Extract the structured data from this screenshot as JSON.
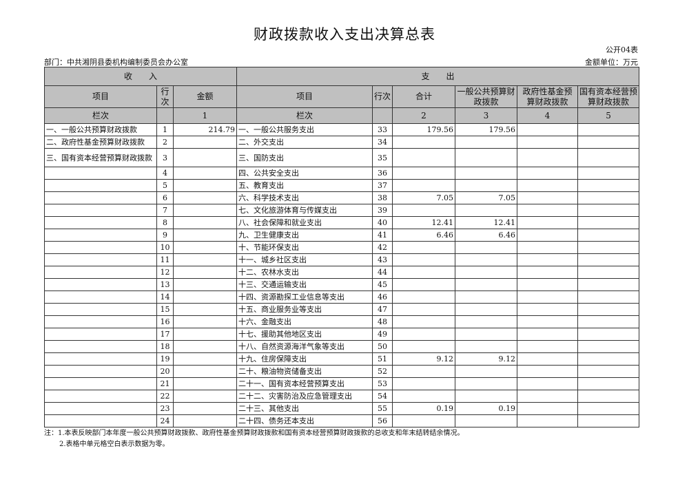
{
  "title": "财政拨款收入支出决算总表",
  "form_no": "公开04表",
  "department": "部门：中共湘阴县委机构编制委员会办公室",
  "unit": "金额单位：万元",
  "header": {
    "income": "收　　入",
    "expense": "支　　出",
    "income_item": "项目",
    "income_row": "行次",
    "income_amount": "金额",
    "expense_item": "项目",
    "expense_row": "行次",
    "total": "合计",
    "general": "一般公共预算财政拨款",
    "fund": "政府性基金预算财政拨款",
    "state_capital": "国有资本经营预算财政拨款",
    "col_label_left": "栏次",
    "col_label_right": "栏次",
    "col1": "1",
    "col2": "2",
    "col3": "3",
    "col4": "4",
    "col5": "5"
  },
  "rows": [
    {
      "in_item": "一、一般公共预算财政拨款",
      "in_no": "1",
      "in_amt": "214.79",
      "ex_item": "一、一般公共服务支出",
      "ex_no": "33",
      "total": "179.56",
      "general": "179.56",
      "fund": "",
      "sc": ""
    },
    {
      "in_item": "二、政府性基金预算财政拨款",
      "in_no": "2",
      "in_amt": "",
      "ex_item": "二、外交支出",
      "ex_no": "34",
      "total": "",
      "general": "",
      "fund": "",
      "sc": ""
    },
    {
      "in_item": "三、国有资本经营预算财政拨款",
      "in_no": "3",
      "in_amt": "",
      "ex_item": "三、国防支出",
      "ex_no": "35",
      "total": "",
      "general": "",
      "fund": "",
      "sc": ""
    },
    {
      "in_item": "",
      "in_no": "4",
      "in_amt": "",
      "ex_item": "四、公共安全支出",
      "ex_no": "36",
      "total": "",
      "general": "",
      "fund": "",
      "sc": ""
    },
    {
      "in_item": "",
      "in_no": "5",
      "in_amt": "",
      "ex_item": "五、教育支出",
      "ex_no": "37",
      "total": "",
      "general": "",
      "fund": "",
      "sc": ""
    },
    {
      "in_item": "",
      "in_no": "6",
      "in_amt": "",
      "ex_item": "六、科学技术支出",
      "ex_no": "38",
      "total": "7.05",
      "general": "7.05",
      "fund": "",
      "sc": ""
    },
    {
      "in_item": "",
      "in_no": "7",
      "in_amt": "",
      "ex_item": "七、文化旅游体育与传媒支出",
      "ex_no": "39",
      "total": "",
      "general": "",
      "fund": "",
      "sc": ""
    },
    {
      "in_item": "",
      "in_no": "8",
      "in_amt": "",
      "ex_item": "八、社会保障和就业支出",
      "ex_no": "40",
      "total": "12.41",
      "general": "12.41",
      "fund": "",
      "sc": ""
    },
    {
      "in_item": "",
      "in_no": "9",
      "in_amt": "",
      "ex_item": "九、卫生健康支出",
      "ex_no": "41",
      "total": "6.46",
      "general": "6.46",
      "fund": "",
      "sc": ""
    },
    {
      "in_item": "",
      "in_no": "10",
      "in_amt": "",
      "ex_item": "十、节能环保支出",
      "ex_no": "42",
      "total": "",
      "general": "",
      "fund": "",
      "sc": ""
    },
    {
      "in_item": "",
      "in_no": "11",
      "in_amt": "",
      "ex_item": "十一、城乡社区支出",
      "ex_no": "43",
      "total": "",
      "general": "",
      "fund": "",
      "sc": ""
    },
    {
      "in_item": "",
      "in_no": "12",
      "in_amt": "",
      "ex_item": "十二、农林水支出",
      "ex_no": "44",
      "total": "",
      "general": "",
      "fund": "",
      "sc": ""
    },
    {
      "in_item": "",
      "in_no": "13",
      "in_amt": "",
      "ex_item": "十三、交通运输支出",
      "ex_no": "45",
      "total": "",
      "general": "",
      "fund": "",
      "sc": ""
    },
    {
      "in_item": "",
      "in_no": "14",
      "in_amt": "",
      "ex_item": "十四、资源勘探工业信息等支出",
      "ex_no": "46",
      "total": "",
      "general": "",
      "fund": "",
      "sc": ""
    },
    {
      "in_item": "",
      "in_no": "15",
      "in_amt": "",
      "ex_item": "十五、商业服务业等支出",
      "ex_no": "47",
      "total": "",
      "general": "",
      "fund": "",
      "sc": ""
    },
    {
      "in_item": "",
      "in_no": "16",
      "in_amt": "",
      "ex_item": "十六、金融支出",
      "ex_no": "48",
      "total": "",
      "general": "",
      "fund": "",
      "sc": ""
    },
    {
      "in_item": "",
      "in_no": "17",
      "in_amt": "",
      "ex_item": "十七、援助其他地区支出",
      "ex_no": "49",
      "total": "",
      "general": "",
      "fund": "",
      "sc": ""
    },
    {
      "in_item": "",
      "in_no": "18",
      "in_amt": "",
      "ex_item": "十八、自然资源海洋气象等支出",
      "ex_no": "50",
      "total": "",
      "general": "",
      "fund": "",
      "sc": ""
    },
    {
      "in_item": "",
      "in_no": "19",
      "in_amt": "",
      "ex_item": "十九、住房保障支出",
      "ex_no": "51",
      "total": "9.12",
      "general": "9.12",
      "fund": "",
      "sc": ""
    },
    {
      "in_item": "",
      "in_no": "20",
      "in_amt": "",
      "ex_item": "二十、粮油物资储备支出",
      "ex_no": "52",
      "total": "",
      "general": "",
      "fund": "",
      "sc": ""
    },
    {
      "in_item": "",
      "in_no": "21",
      "in_amt": "",
      "ex_item": "二十一、国有资本经营预算支出",
      "ex_no": "53",
      "total": "",
      "general": "",
      "fund": "",
      "sc": ""
    },
    {
      "in_item": "",
      "in_no": "22",
      "in_amt": "",
      "ex_item": "二十二、灾害防治及应急管理支出",
      "ex_no": "54",
      "total": "",
      "general": "",
      "fund": "",
      "sc": ""
    },
    {
      "in_item": "",
      "in_no": "23",
      "in_amt": "",
      "ex_item": "二十三、其他支出",
      "ex_no": "55",
      "total": "0.19",
      "general": "0.19",
      "fund": "",
      "sc": ""
    },
    {
      "in_item": "",
      "in_no": "24",
      "in_amt": "",
      "ex_item": "二十四、债务还本支出",
      "ex_no": "56",
      "total": "",
      "general": "",
      "fund": "",
      "sc": ""
    }
  ],
  "notes": [
    "注：1.本表反映部门本年度一般公共预算财政拨款、政府性基金预算财政拨款和国有资本经营预算财政拨款的总收支和年末结转结余情况。",
    "2.表格中单元格空白表示数据为零。"
  ]
}
